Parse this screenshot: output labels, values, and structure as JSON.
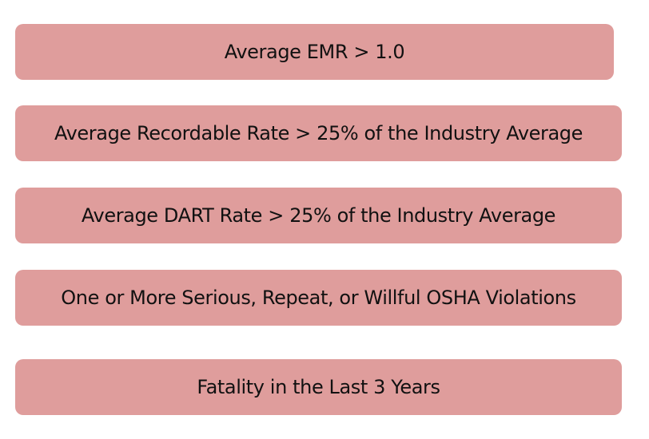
{
  "criteria": [
    {
      "label": "Average EMR > 1.0"
    },
    {
      "label": "Average Recordable Rate > 25% of the Industry Average"
    },
    {
      "label": "Average DART Rate > 25% of the Industry Average"
    },
    {
      "label": "One or More Serious, Repeat, or Willful OSHA Violations"
    },
    {
      "label": "Fatality in the Last 3 Years"
    }
  ],
  "colors": {
    "box_fill": "#df9d9c",
    "text": "#111111",
    "background": "#ffffff"
  }
}
